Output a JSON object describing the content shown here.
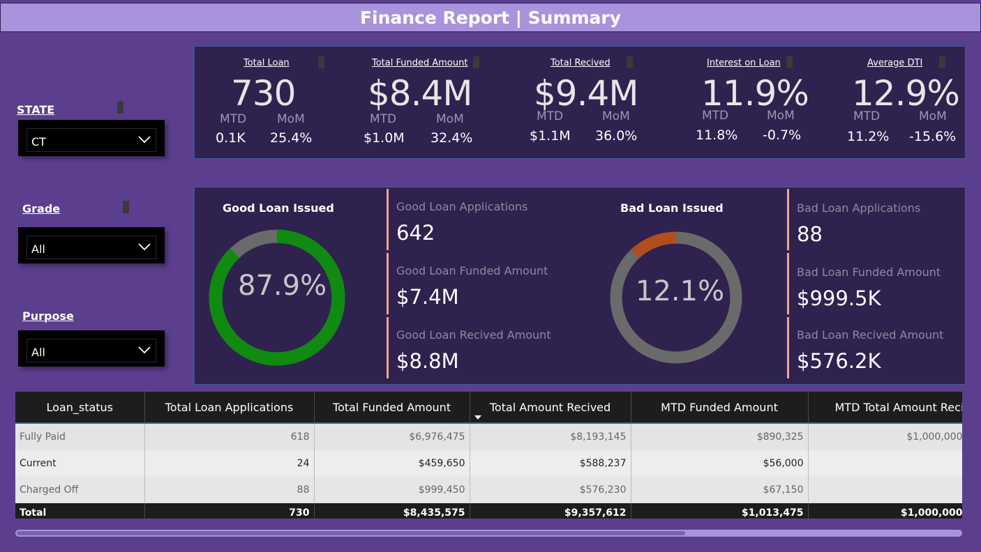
{
  "header": {
    "title": "Finance Report | Summary"
  },
  "colors": {
    "good": "#108a10",
    "bad": "#b24e1c",
    "ring": "#6a6a6a",
    "panel": "#2f224f",
    "accent_line": "#f0a890"
  },
  "filters": {
    "state": {
      "label": "STATE",
      "value": "CT"
    },
    "grade": {
      "label": "Grade",
      "value": "All"
    },
    "purpose": {
      "label": "Purpose",
      "value": "All"
    }
  },
  "kpis": [
    {
      "title": "Total Loan ",
      "value": "730",
      "mtd_label": "MTD",
      "mom_label": "MoM",
      "mtd": "0.1K",
      "mom": "25.4%"
    },
    {
      "title": "Total Funded Amount",
      "value": "$8.4M",
      "mtd_label": "MTD",
      "mom_label": "MoM",
      "mtd": "$1.0M",
      "mom": "32.4%"
    },
    {
      "title": "Total Recived ",
      "value": "$9.4M",
      "mtd_label": "MTD",
      "mom_label": "MoM",
      "mtd": "$1.1M",
      "mom": "36.0%"
    },
    {
      "title": "Interest on Loan",
      "value": "11.9%",
      "mtd_label": "MTD",
      "mom_label": "MoM",
      "mtd": "11.8%",
      "mom": "-0.7%"
    },
    {
      "title": "Average DTI",
      "value": "12.9%",
      "mtd_label": "MTD",
      "mom_label": "MoM",
      "mtd": "11.2%",
      "mom": "-15.6%"
    }
  ],
  "good_loan": {
    "title": "Good Loan Issued",
    "percent_label": "87.9%",
    "percent": 0.879,
    "cards": [
      {
        "label": "Good Loan Applications",
        "value": "642"
      },
      {
        "label": "Good Loan Funded Amount",
        "value": "$7.4M"
      },
      {
        "label": "Good Loan Recived Amount",
        "value": "$8.8M"
      }
    ]
  },
  "bad_loan": {
    "title": "Bad Loan Issued",
    "percent_label": "12.1%",
    "percent": 0.121,
    "cards": [
      {
        "label": "Bad Loan Applications",
        "value": "88"
      },
      {
        "label": "Bad Loan Funded Amount",
        "value": "$999.5K"
      },
      {
        "label": "Bad Loan Recived Amount",
        "value": "$576.2K"
      }
    ]
  },
  "table": {
    "columns": [
      "Loan_status",
      "Total Loan Applications",
      "Total Funded Amount",
      "Total Amount Recived",
      "MTD Funded Amount",
      "MTD Total Amount Recived"
    ],
    "rows": [
      [
        "Fully Paid",
        "618",
        "$6,976,475",
        "$8,193,145",
        "$890,325",
        "$1,000,000"
      ],
      [
        "Current",
        "24",
        "$459,650",
        "$588,237",
        "$56,000",
        ""
      ],
      [
        "Charged Off",
        "88",
        "$999,450",
        "$576,230",
        "$67,150",
        ""
      ]
    ],
    "total": [
      "Total",
      "730",
      "$8,435,575",
      "$9,357,612",
      "$1,013,475",
      "$1,000,000"
    ]
  }
}
